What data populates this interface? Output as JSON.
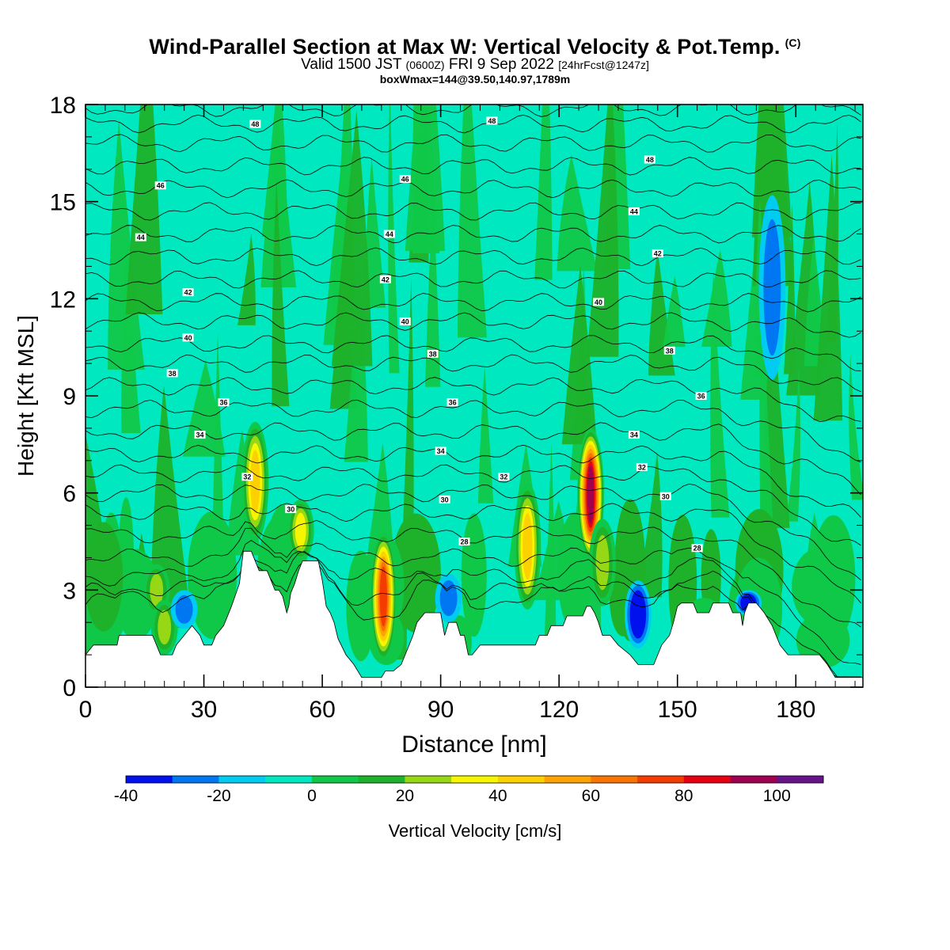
{
  "header": {
    "title": "Wind-Parallel Section at Max W: Vertical Velocity & Pot.Temp.",
    "copyright": "(C)",
    "valid_prefix": "Valid 1500 JST",
    "valid_utc": "(0600Z)",
    "valid_date": "FRI 9 Sep 2022",
    "forecast": "[24hrFcst@1247z]",
    "box_info": "boxWmax=144@39.50,140.97,1789m"
  },
  "chart_data": {
    "type": "heatmap",
    "xlabel": "Distance [nm]",
    "ylabel": "Height [Kft MSL]",
    "xlim": [
      0,
      197
    ],
    "ylim": [
      0,
      18
    ],
    "x_ticks": [
      "0",
      "30",
      "60",
      "90",
      "120",
      "150",
      "180"
    ],
    "y_ticks": [
      "0",
      "3",
      "6",
      "9",
      "12",
      "15",
      "18"
    ],
    "colorbar": {
      "label": "Vertical Velocity [cm/s]",
      "bounds": [
        -40,
        -30,
        -20,
        -10,
        0,
        10,
        20,
        30,
        40,
        50,
        60,
        70,
        80,
        90,
        100,
        110
      ],
      "tick_labels": [
        "-40",
        "-20",
        "0",
        "20",
        "40",
        "60",
        "80",
        "100"
      ],
      "colors": [
        "#0011ee",
        "#0077f2",
        "#00ccf2",
        "#00e8c0",
        "#10c848",
        "#1eb22a",
        "#96d816",
        "#f6f600",
        "#fdd000",
        "#fda400",
        "#f87600",
        "#f43c00",
        "#e60010",
        "#a00050",
        "#661488"
      ]
    },
    "background_color": "#00e8c0",
    "updraft_plumes": [
      {
        "x": 43,
        "y_bottom": 4.5,
        "y_top": 8.2,
        "peak": 45
      },
      {
        "x": 54.5,
        "y_bottom": 3.9,
        "y_top": 5.8,
        "peak": 35
      },
      {
        "x": 75.5,
        "y_bottom": 0.8,
        "y_top": 4.8,
        "peak": 72
      },
      {
        "x": 112,
        "y_bottom": 2.4,
        "y_top": 6.3,
        "peak": 48
      },
      {
        "x": 128,
        "y_bottom": 3.9,
        "y_top": 8.0,
        "peak": 92
      },
      {
        "x": 131,
        "y_bottom": 2.5,
        "y_top": 5.2,
        "peak": 25
      },
      {
        "x": 18,
        "y_bottom": 2.2,
        "y_top": 3.8,
        "peak": 25
      },
      {
        "x": 20,
        "y_bottom": 1.0,
        "y_top": 2.7,
        "peak": 22
      }
    ],
    "downdraft_streaks": [
      {
        "x": 174,
        "y_bottom": 9.5,
        "y_top": 15.2,
        "peak": -15
      },
      {
        "x": 140,
        "y_bottom": 1.2,
        "y_top": 3.3,
        "peak": -35
      },
      {
        "x": 168,
        "y_bottom": 2.2,
        "y_top": 3.0,
        "peak": -35
      },
      {
        "x": 25,
        "y_bottom": 1.8,
        "y_top": 3.0,
        "peak": -15
      },
      {
        "x": 92,
        "y_bottom": 2.0,
        "y_top": 3.5,
        "peak": -12
      }
    ],
    "terrain": [
      [
        0,
        1.0
      ],
      [
        2,
        1.3
      ],
      [
        8,
        1.3
      ],
      [
        8.5,
        1.6
      ],
      [
        17,
        1.6
      ],
      [
        19,
        1.0
      ],
      [
        22,
        1.0
      ],
      [
        23,
        1.3
      ],
      [
        25,
        1.6
      ],
      [
        27,
        1.9
      ],
      [
        29,
        1.6
      ],
      [
        30,
        1.3
      ],
      [
        32,
        1.3
      ],
      [
        33,
        1.6
      ],
      [
        35,
        1.9
      ],
      [
        37,
        2.5
      ],
      [
        39,
        3.2
      ],
      [
        40,
        4.2
      ],
      [
        42,
        4.2
      ],
      [
        44,
        3.6
      ],
      [
        46,
        3.6
      ],
      [
        47,
        3.3
      ],
      [
        48,
        3.0
      ],
      [
        49,
        3.0
      ],
      [
        50,
        2.8
      ],
      [
        51,
        2.3
      ],
      [
        51.5,
        2.5
      ],
      [
        52,
        2.9
      ],
      [
        53,
        3.2
      ],
      [
        54,
        3.6
      ],
      [
        55,
        3.9
      ],
      [
        59,
        3.9
      ],
      [
        60,
        3.3
      ],
      [
        61,
        2.5
      ],
      [
        62,
        2.3
      ],
      [
        63,
        2.0
      ],
      [
        64,
        1.5
      ],
      [
        66,
        1.0
      ],
      [
        68,
        0.7
      ],
      [
        69,
        0.5
      ],
      [
        70,
        0.3
      ],
      [
        75,
        0.3
      ],
      [
        76,
        0.5
      ],
      [
        78,
        0.5
      ],
      [
        80,
        0.7
      ],
      [
        81,
        1.0
      ],
      [
        82,
        1.3
      ],
      [
        83,
        1.6
      ],
      [
        84,
        2.0
      ],
      [
        86,
        2.3
      ],
      [
        90,
        2.3
      ],
      [
        91,
        1.6
      ],
      [
        92,
        2.0
      ],
      [
        94,
        2.0
      ],
      [
        95,
        1.6
      ],
      [
        96,
        1.6
      ],
      [
        97,
        1.0
      ],
      [
        98,
        1.0
      ],
      [
        100,
        1.3
      ],
      [
        114,
        1.3
      ],
      [
        115,
        1.6
      ],
      [
        117,
        1.6
      ],
      [
        118,
        1.9
      ],
      [
        121,
        1.9
      ],
      [
        122,
        2.2
      ],
      [
        126,
        2.2
      ],
      [
        127,
        2.5
      ],
      [
        128,
        2.5
      ],
      [
        129,
        2.3
      ],
      [
        130,
        2.0
      ],
      [
        131,
        1.6
      ],
      [
        133,
        1.6
      ],
      [
        135,
        1.3
      ],
      [
        138,
        1.0
      ],
      [
        140,
        0.7
      ],
      [
        144,
        0.7
      ],
      [
        145,
        1.0
      ],
      [
        146,
        1.3
      ],
      [
        148,
        1.6
      ],
      [
        149,
        2.0
      ],
      [
        150,
        2.5
      ],
      [
        151,
        2.6
      ],
      [
        154,
        2.6
      ],
      [
        155,
        2.3
      ],
      [
        158,
        2.3
      ],
      [
        159,
        2.6
      ],
      [
        163,
        2.6
      ],
      [
        164,
        2.3
      ],
      [
        166,
        2.3
      ],
      [
        166.5,
        1.9
      ],
      [
        167,
        2.3
      ],
      [
        168,
        2.6
      ],
      [
        170,
        2.6
      ],
      [
        172,
        2.3
      ],
      [
        174,
        1.9
      ],
      [
        175,
        1.6
      ],
      [
        176,
        1.3
      ],
      [
        178,
        1.0
      ],
      [
        186,
        1.0
      ],
      [
        188,
        0.7
      ],
      [
        189,
        0.5
      ],
      [
        190,
        0.3
      ],
      [
        197,
        0.3
      ]
    ],
    "theta_contours": {
      "levels": [
        25,
        26,
        27,
        28,
        29,
        30,
        31,
        32,
        33,
        34,
        35,
        36,
        37,
        38,
        39,
        40,
        41,
        42,
        43,
        44,
        45,
        46,
        47,
        48,
        49
      ],
      "mean_heights": [
        2.2,
        2.8,
        3.4,
        4.0,
        4.7,
        5.4,
        6.0,
        6.6,
        7.2,
        7.9,
        8.6,
        9.3,
        10.0,
        10.6,
        11.3,
        11.9,
        12.6,
        13.3,
        14.0,
        14.7,
        15.4,
        16.1,
        16.8,
        17.4,
        17.9
      ],
      "labels": [
        {
          "text": "48",
          "x": 43,
          "y": 17.4
        },
        {
          "text": "48",
          "x": 103,
          "y": 17.5
        },
        {
          "text": "46",
          "x": 19,
          "y": 15.5
        },
        {
          "text": "46",
          "x": 81,
          "y": 15.7
        },
        {
          "text": "48",
          "x": 143,
          "y": 16.3
        },
        {
          "text": "44",
          "x": 14,
          "y": 13.9
        },
        {
          "text": "44",
          "x": 77,
          "y": 14.0
        },
        {
          "text": "44",
          "x": 139,
          "y": 14.7
        },
        {
          "text": "42",
          "x": 145,
          "y": 13.4
        },
        {
          "text": "42",
          "x": 26,
          "y": 12.2
        },
        {
          "text": "42",
          "x": 76,
          "y": 12.6
        },
        {
          "text": "40",
          "x": 130,
          "y": 11.9
        },
        {
          "text": "40",
          "x": 81,
          "y": 11.3
        },
        {
          "text": "40",
          "x": 26,
          "y": 10.8
        },
        {
          "text": "38",
          "x": 148,
          "y": 10.4
        },
        {
          "text": "38",
          "x": 88,
          "y": 10.3
        },
        {
          "text": "38",
          "x": 22,
          "y": 9.7
        },
        {
          "text": "36",
          "x": 156,
          "y": 9.0
        },
        {
          "text": "36",
          "x": 35,
          "y": 8.8
        },
        {
          "text": "36",
          "x": 93,
          "y": 8.8
        },
        {
          "text": "34",
          "x": 139,
          "y": 7.8
        },
        {
          "text": "34",
          "x": 29,
          "y": 7.8
        },
        {
          "text": "34",
          "x": 90,
          "y": 7.3
        },
        {
          "text": "32",
          "x": 141,
          "y": 6.8
        },
        {
          "text": "32",
          "x": 41,
          "y": 6.5
        },
        {
          "text": "32",
          "x": 106,
          "y": 6.5
        },
        {
          "text": "30",
          "x": 147,
          "y": 5.9
        },
        {
          "text": "30",
          "x": 52,
          "y": 5.5
        },
        {
          "text": "30",
          "x": 91,
          "y": 5.8
        },
        {
          "text": "28",
          "x": 96,
          "y": 4.5
        },
        {
          "text": "28",
          "x": 155,
          "y": 4.3
        }
      ]
    }
  }
}
